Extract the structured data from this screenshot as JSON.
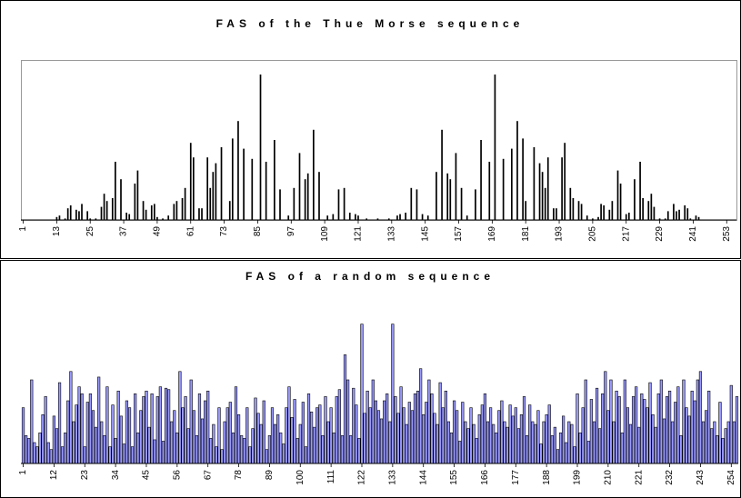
{
  "chart_data": [
    {
      "type": "bar",
      "title": "FAS of the Thue Morse sequence",
      "categories": [
        1,
        null,
        null,
        null,
        null,
        null,
        null,
        null,
        null,
        null,
        null,
        null,
        13,
        null,
        null,
        null,
        null,
        null,
        null,
        null,
        null,
        null,
        null,
        null,
        25,
        null,
        null,
        null,
        null,
        null,
        null,
        null,
        null,
        null,
        null,
        null,
        37,
        null,
        null,
        null,
        null,
        null,
        null,
        null,
        null,
        null,
        null,
        null,
        49,
        null,
        null,
        null,
        null,
        null,
        null,
        null,
        null,
        null,
        null,
        null,
        61,
        null,
        null,
        null,
        null,
        null,
        null,
        null,
        null,
        null,
        null,
        null,
        73,
        null,
        null,
        null,
        null,
        null,
        null,
        null,
        null,
        null,
        null,
        null,
        85,
        null,
        null,
        null,
        null,
        null,
        null,
        null,
        null,
        null,
        null,
        null,
        97,
        null,
        null,
        null,
        null,
        null,
        null,
        null,
        null,
        null,
        null,
        null,
        109,
        null,
        null,
        null,
        null,
        null,
        null,
        null,
        null,
        null,
        null,
        null,
        121,
        null,
        null,
        null,
        null,
        null,
        null,
        null,
        null,
        null,
        null,
        null,
        133,
        null,
        null,
        null,
        null,
        null,
        null,
        null,
        null,
        null,
        null,
        null,
        145,
        null,
        null,
        null,
        null,
        null,
        null,
        null,
        null,
        null,
        null,
        null,
        157,
        null,
        null,
        null,
        null,
        null,
        null,
        null,
        null,
        null,
        null,
        null,
        169,
        null,
        null,
        null,
        null,
        null,
        null,
        null,
        null,
        null,
        null,
        null,
        181,
        null,
        null,
        null,
        null,
        null,
        null,
        null,
        null,
        null,
        null,
        null,
        193,
        null,
        null,
        null,
        null,
        null,
        null,
        null,
        null,
        null,
        null,
        null,
        205,
        null,
        null,
        null,
        null,
        null,
        null,
        null,
        null,
        null,
        null,
        null,
        217,
        null,
        null,
        null,
        null,
        null,
        null,
        null,
        null,
        null,
        null,
        null,
        229,
        null,
        null,
        null,
        null,
        null,
        null,
        null,
        null,
        null,
        null,
        null,
        241,
        null,
        null,
        null,
        null,
        null,
        null,
        null,
        null,
        null,
        null,
        null,
        253,
        null,
        null,
        null
      ],
      "values": [
        0,
        0,
        0,
        0,
        0,
        0,
        0,
        0,
        0,
        0,
        0,
        0,
        2,
        3,
        0,
        1,
        8,
        10,
        0,
        7,
        6,
        11,
        0,
        6,
        1,
        0,
        1,
        0,
        9,
        18,
        13,
        0,
        15,
        40,
        0,
        28,
        0,
        5,
        4,
        0,
        25,
        34,
        0,
        13,
        7,
        0,
        10,
        11,
        2,
        0,
        1,
        0,
        3,
        0,
        11,
        13,
        0,
        15,
        22,
        0,
        53,
        43,
        0,
        8,
        8,
        0,
        43,
        22,
        33,
        39,
        0,
        50,
        0,
        0,
        13,
        56,
        0,
        68,
        0,
        49,
        0,
        0,
        42,
        0,
        0,
        100,
        0,
        40,
        0,
        0,
        55,
        0,
        21,
        0,
        0,
        3,
        0,
        22,
        0,
        46,
        0,
        28,
        32,
        0,
        62,
        0,
        33,
        0,
        0,
        3,
        0,
        4,
        0,
        21,
        0,
        22,
        0,
        5,
        0,
        4,
        3,
        0,
        0,
        1,
        0,
        0,
        0,
        1,
        0,
        0,
        0,
        1,
        0,
        0,
        3,
        4,
        0,
        5,
        0,
        22,
        0,
        21,
        0,
        4,
        0,
        3,
        0,
        0,
        33,
        0,
        62,
        0,
        32,
        28,
        0,
        46,
        0,
        22,
        0,
        3,
        0,
        0,
        21,
        0,
        55,
        0,
        0,
        40,
        0,
        100,
        0,
        0,
        42,
        0,
        0,
        49,
        0,
        68,
        0,
        56,
        13,
        0,
        0,
        50,
        0,
        39,
        33,
        22,
        43,
        0,
        8,
        8,
        0,
        43,
        53,
        0,
        22,
        15,
        0,
        13,
        11,
        0,
        3,
        0,
        1,
        0,
        2,
        11,
        10,
        0,
        7,
        13,
        0,
        34,
        25,
        0,
        4,
        5,
        0,
        28,
        0,
        40,
        15,
        0,
        13,
        18,
        9,
        0,
        1,
        0,
        1,
        6,
        0,
        11,
        6,
        7,
        0,
        10,
        8,
        1,
        0,
        3,
        2,
        0,
        0,
        0,
        0,
        0,
        0,
        0,
        0,
        0,
        0,
        0,
        0,
        0
      ],
      "color": "#000000",
      "ylim": [
        0,
        110
      ]
    },
    {
      "type": "bar",
      "title": "FAS of a random sequence",
      "categories": [
        1,
        null,
        null,
        null,
        null,
        null,
        null,
        null,
        null,
        null,
        null,
        12,
        null,
        null,
        null,
        null,
        null,
        null,
        null,
        null,
        null,
        null,
        23,
        null,
        null,
        null,
        null,
        null,
        null,
        null,
        null,
        null,
        null,
        34,
        null,
        null,
        null,
        null,
        null,
        null,
        null,
        null,
        null,
        null,
        45,
        null,
        null,
        null,
        null,
        null,
        null,
        null,
        null,
        null,
        null,
        56,
        null,
        null,
        null,
        null,
        null,
        null,
        null,
        null,
        null,
        null,
        67,
        null,
        null,
        null,
        null,
        null,
        null,
        null,
        null,
        null,
        null,
        78,
        null,
        null,
        null,
        null,
        null,
        null,
        null,
        null,
        null,
        null,
        89,
        null,
        null,
        null,
        null,
        null,
        null,
        null,
        null,
        null,
        null,
        100,
        null,
        null,
        null,
        null,
        null,
        null,
        null,
        null,
        null,
        null,
        111,
        null,
        null,
        null,
        null,
        null,
        null,
        null,
        null,
        null,
        null,
        122,
        null,
        null,
        null,
        null,
        null,
        null,
        null,
        null,
        null,
        null,
        133,
        null,
        null,
        null,
        null,
        null,
        null,
        null,
        null,
        null,
        null,
        144,
        null,
        null,
        null,
        null,
        null,
        null,
        null,
        null,
        null,
        null,
        155,
        null,
        null,
        null,
        null,
        null,
        null,
        null,
        null,
        null,
        null,
        166,
        null,
        null,
        null,
        null,
        null,
        null,
        null,
        null,
        null,
        null,
        177,
        null,
        null,
        null,
        null,
        null,
        null,
        null,
        null,
        null,
        null,
        188,
        null,
        null,
        null,
        null,
        null,
        null,
        null,
        null,
        null,
        null,
        199,
        null,
        null,
        null,
        null,
        null,
        null,
        null,
        null,
        null,
        null,
        210,
        null,
        null,
        null,
        null,
        null,
        null,
        null,
        null,
        null,
        null,
        221,
        null,
        null,
        null,
        null,
        null,
        null,
        null,
        null,
        null,
        null,
        232,
        null,
        null,
        null,
        null,
        null,
        null,
        null,
        null,
        null,
        null,
        243,
        null,
        null,
        null,
        null,
        null,
        null,
        null,
        null,
        null,
        null,
        254,
        null,
        null
      ],
      "values": [
        40,
        20,
        18,
        60,
        15,
        12,
        22,
        35,
        48,
        15,
        10,
        34,
        25,
        58,
        12,
        22,
        45,
        66,
        30,
        42,
        55,
        50,
        12,
        44,
        50,
        38,
        26,
        62,
        30,
        20,
        55,
        12,
        42,
        18,
        52,
        34,
        14,
        45,
        40,
        12,
        50,
        22,
        38,
        48,
        52,
        26,
        50,
        17,
        48,
        55,
        16,
        54,
        53,
        30,
        38,
        22,
        66,
        40,
        48,
        25,
        60,
        38,
        20,
        50,
        32,
        45,
        52,
        18,
        28,
        12,
        40,
        10,
        30,
        40,
        44,
        22,
        55,
        35,
        20,
        18,
        40,
        12,
        25,
        47,
        36,
        28,
        45,
        10,
        20,
        40,
        28,
        35,
        22,
        14,
        40,
        55,
        33,
        46,
        18,
        28,
        44,
        12,
        50,
        37,
        26,
        40,
        42,
        20,
        48,
        30,
        40,
        22,
        48,
        53,
        20,
        78,
        60,
        20,
        54,
        42,
        18,
        100,
        36,
        52,
        40,
        60,
        45,
        38,
        32,
        45,
        50,
        30,
        100,
        48,
        36,
        55,
        40,
        28,
        44,
        38,
        50,
        52,
        68,
        35,
        44,
        60,
        50,
        36,
        28,
        58,
        40,
        52,
        30,
        22,
        45,
        38,
        16,
        44,
        30,
        25,
        40,
        28,
        18,
        35,
        42,
        50,
        30,
        40,
        28,
        22,
        38,
        45,
        30,
        26,
        42,
        34,
        40,
        25,
        35,
        48,
        20,
        42,
        30,
        28,
        38,
        14,
        30,
        35,
        42,
        20,
        26,
        10,
        22,
        34,
        15,
        30,
        28,
        12,
        50,
        22,
        40,
        60,
        16,
        46,
        30,
        54,
        25,
        50,
        66,
        38,
        60,
        30,
        52,
        48,
        22,
        60,
        40,
        28,
        48,
        55,
        26,
        50,
        46,
        40,
        58,
        35,
        26,
        50,
        60,
        32,
        48,
        52,
        30,
        44,
        55,
        20,
        60,
        40,
        34,
        52,
        45,
        60,
        66,
        30,
        38,
        52,
        25,
        30,
        20,
        44,
        18,
        25,
        30,
        56,
        30,
        48
      ],
      "color": "#9999ff",
      "edgecolor": "#000000",
      "ylim": [
        0,
        120
      ]
    }
  ]
}
